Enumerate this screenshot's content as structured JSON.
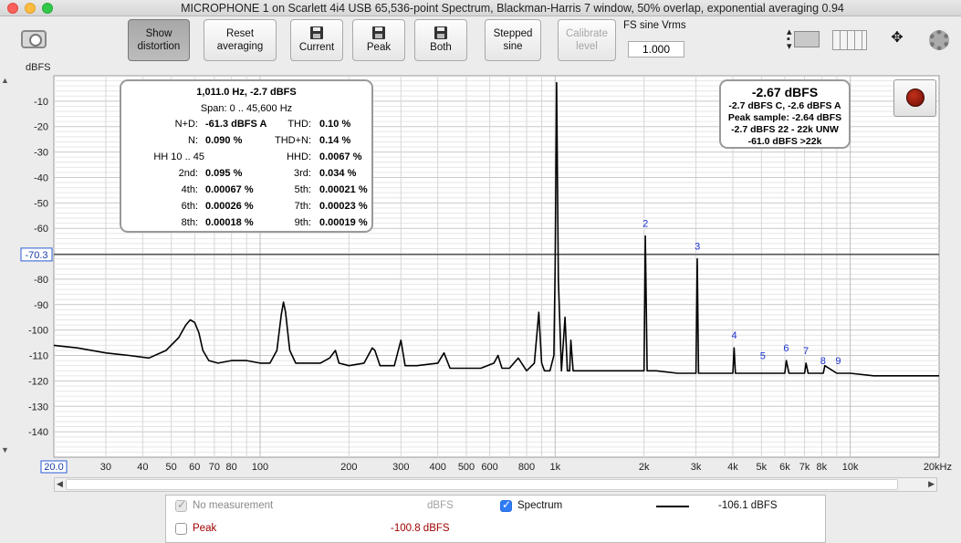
{
  "window": {
    "title": "MICROPHONE 1 on Scarlett 4i4 USB 65,536-point Spectrum, Blackman-Harris 7 window, 50% overlap, exponential averaging 0.94"
  },
  "toolbar": {
    "show_distortion": [
      "Show",
      "distortion"
    ],
    "reset_averaging": [
      "Reset",
      "averaging"
    ],
    "current": "Current",
    "peak": "Peak",
    "both": "Both",
    "stepped_sine": [
      "Stepped",
      "sine"
    ],
    "calibrate_level": [
      "Calibrate",
      "level"
    ],
    "fs_label": "FS sine Vrms",
    "fs_value": "1.000"
  },
  "icons": {
    "camera": "camera-icon",
    "layout": "layout-toggle-icon",
    "columns": "columns-icon",
    "move": "move-arrows-icon",
    "gear": "gear-icon",
    "floppy": "floppy-disk-icon",
    "record": "record-icon"
  },
  "distortion": {
    "header": "1,011.0 Hz, -2.7 dBFS",
    "span": "Span: 0 .. 45,600 Hz",
    "rows": [
      {
        "l1": "N+D:",
        "v1": "-61.3 dBFS A",
        "l2": "THD:",
        "v2": "0.10 %"
      },
      {
        "l1": "N:",
        "v1": "0.090 %",
        "l2": "THD+N:",
        "v2": "0.14 %"
      },
      {
        "l1": "HH 10 .. 45",
        "v1": "",
        "l2": "HHD:",
        "v2": "0.0067 %"
      },
      {
        "l1": "2nd:",
        "v1": "0.095 %",
        "l2": "3rd:",
        "v2": "0.034 %"
      },
      {
        "l1": "4th:",
        "v1": "0.00067 %",
        "l2": "5th:",
        "v2": "0.00021 %"
      },
      {
        "l1": "6th:",
        "v1": "0.00026 %",
        "l2": "7th:",
        "v2": "0.00023 %"
      },
      {
        "l1": "8th:",
        "v1": "0.00018 %",
        "l2": "9th:",
        "v2": "0.00019 %"
      }
    ]
  },
  "level": {
    "main": "-2.67 dBFS",
    "lines": [
      "-2.7 dBFS C, -2.6 dBFS A",
      "Peak sample: -2.64 dBFS",
      "-2.7 dBFS 22 - 22k UNW",
      "-61.0 dBFS >22k"
    ]
  },
  "chart_data": {
    "type": "line",
    "ylabel": "dBFS",
    "xscale": "log",
    "xlim": [
      20,
      20000
    ],
    "ylim": [
      -150,
      0
    ],
    "x_ticks": [
      {
        "v": 30,
        "t": "30"
      },
      {
        "v": 40,
        "t": "40"
      },
      {
        "v": 50,
        "t": "50"
      },
      {
        "v": 60,
        "t": "60"
      },
      {
        "v": 70,
        "t": "70"
      },
      {
        "v": 80,
        "t": "80"
      },
      {
        "v": 100,
        "t": "100"
      },
      {
        "v": 200,
        "t": "200"
      },
      {
        "v": 300,
        "t": "300"
      },
      {
        "v": 400,
        "t": "400"
      },
      {
        "v": 500,
        "t": "500"
      },
      {
        "v": 600,
        "t": "600"
      },
      {
        "v": 800,
        "t": "800"
      },
      {
        "v": 1000,
        "t": "1k"
      },
      {
        "v": 2000,
        "t": "2k"
      },
      {
        "v": 3000,
        "t": "3k"
      },
      {
        "v": 4000,
        "t": "4k"
      },
      {
        "v": 5000,
        "t": "5k"
      },
      {
        "v": 6000,
        "t": "6k"
      },
      {
        "v": 7000,
        "t": "7k"
      },
      {
        "v": 8000,
        "t": "8k"
      },
      {
        "v": 10000,
        "t": "10k"
      },
      {
        "v": 20000,
        "t": "20kHz"
      }
    ],
    "x_start_label": "20.0",
    "y_ticks": [
      {
        "v": -10,
        "t": "-10"
      },
      {
        "v": -20,
        "t": "-20"
      },
      {
        "v": -30,
        "t": "-30"
      },
      {
        "v": -40,
        "t": "-40"
      },
      {
        "v": -50,
        "t": "-50"
      },
      {
        "v": -60,
        "t": "-60"
      },
      {
        "v": -80,
        "t": "-80"
      },
      {
        "v": -90,
        "t": "-90"
      },
      {
        "v": -100,
        "t": "-100"
      },
      {
        "v": -110,
        "t": "-110"
      },
      {
        "v": -120,
        "t": "-120"
      },
      {
        "v": -130,
        "t": "-130"
      },
      {
        "v": -140,
        "t": "-140"
      }
    ],
    "cursor": {
      "y": -70.3,
      "label": "-70.3"
    },
    "grid": true,
    "series": [
      {
        "name": "Spectrum",
        "color": "#000000",
        "x": [
          20,
          24,
          30,
          36,
          42,
          48,
          53,
          56,
          58,
          60,
          62,
          64,
          67,
          72,
          80,
          90,
          100,
          108,
          114,
          118,
          120,
          122,
          126,
          132,
          145,
          160,
          172,
          180,
          185,
          200,
          225,
          240,
          245,
          255,
          285,
          300,
          310,
          340,
          400,
          420,
          440,
          500,
          560,
          620,
          640,
          660,
          700,
          750,
          800,
          850,
          880,
          900,
          920,
          960,
          990,
          1000,
          1011,
          1025,
          1050,
          1080,
          1100,
          1120,
          1130,
          1150,
          1200,
          1300,
          1350,
          1380,
          1500,
          1800,
          2000,
          2020,
          2050,
          2200,
          2600,
          3000,
          3030,
          3060,
          3500,
          4000,
          4040,
          4080,
          4500,
          5000,
          5500,
          6000,
          6070,
          6200,
          6600,
          7000,
          7080,
          7200,
          7600,
          8000,
          8100,
          8200,
          9000,
          9100,
          9200,
          10000,
          12000,
          15000,
          18000,
          20000
        ],
        "y": [
          -106,
          -107,
          -109,
          -110,
          -111,
          -108,
          -103,
          -98,
          -96,
          -97,
          -101,
          -108,
          -112,
          -113,
          -112,
          -112,
          -113,
          -113,
          -108,
          -94,
          -89,
          -93,
          -108,
          -113,
          -113,
          -113,
          -111,
          -108,
          -113,
          -114,
          -113,
          -107,
          -108,
          -114,
          -114,
          -104,
          -114,
          -114,
          -113,
          -109,
          -115,
          -115,
          -115,
          -113,
          -110,
          -115,
          -115,
          -111,
          -116,
          -113,
          -93,
          -113,
          -116,
          -116,
          -110,
          -75,
          -2.7,
          -80,
          -116,
          -95,
          -116,
          -116,
          -104,
          -116,
          -116,
          -116,
          -116,
          -116,
          -116,
          -116,
          -116,
          -63,
          -116,
          -116,
          -117,
          -117,
          -72,
          -117,
          -117,
          -117,
          -107,
          -117,
          -117,
          -117,
          -117,
          -117,
          -112,
          -117,
          -117,
          -117,
          -113,
          -117,
          -117,
          -117,
          -117,
          -114,
          -117,
          -117,
          -117,
          -117,
          -118,
          -118,
          -118,
          -118
        ]
      }
    ],
    "annotations": [
      {
        "x": 2022,
        "y": -63,
        "text": "2"
      },
      {
        "x": 3033,
        "y": -72,
        "text": "3"
      },
      {
        "x": 4044,
        "y": -107,
        "text": "4"
      },
      {
        "x": 5055,
        "y": -115,
        "text": "5"
      },
      {
        "x": 6066,
        "y": -112,
        "text": "6"
      },
      {
        "x": 7077,
        "y": -113,
        "text": "7"
      },
      {
        "x": 8088,
        "y": -117,
        "text": "8"
      },
      {
        "x": 9099,
        "y": -117,
        "text": "9"
      }
    ]
  },
  "legend": {
    "no_measurement": "No measurement",
    "dbfs_header": "dBFS",
    "spectrum": "Spectrum",
    "spectrum_value": "-106.1 dBFS",
    "peak": "Peak",
    "peak_value": "-100.8 dBFS",
    "peak_color": "#a00000"
  }
}
